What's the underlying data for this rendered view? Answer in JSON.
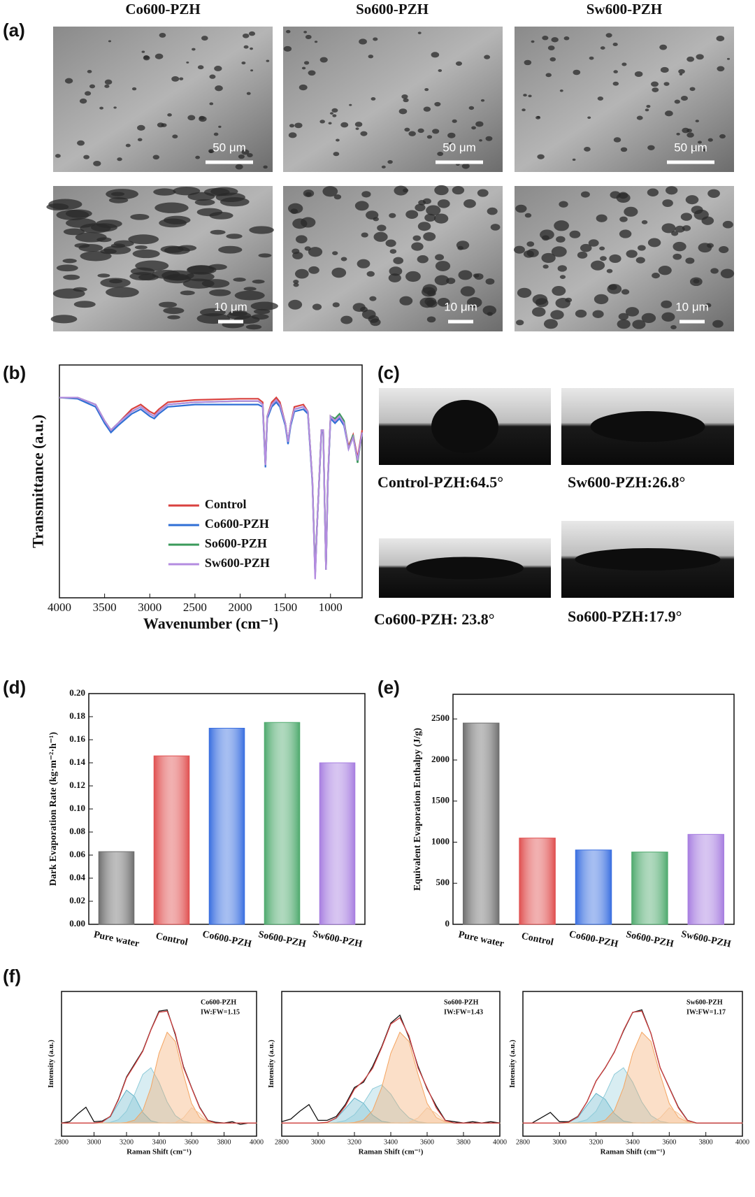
{
  "panel_labels": [
    "(a)",
    "(b)",
    "(c)",
    "(d)",
    "(e)",
    "(f)"
  ],
  "sem": {
    "columns": [
      "Co600-PZH",
      "So600-PZH",
      "Sw600-PZH"
    ],
    "scale_bars": [
      "50 μm",
      "10 μm"
    ]
  },
  "contact_angle": {
    "labels": [
      "Control-PZH:64.5°",
      "Sw600-PZH:26.8°",
      "Co600-PZH: 23.8°",
      "So600-PZH:17.9°"
    ]
  },
  "chart_data": [
    {
      "type": "line",
      "xlabel": "Wavenumber (cm⁻¹)",
      "ylabel": "Transmittance (a.u.)",
      "x": [
        4000,
        3800,
        3600,
        3500,
        3430,
        3350,
        3200,
        3100,
        3000,
        2950,
        2900,
        2800,
        2500,
        2000,
        1800,
        1750,
        1720,
        1700,
        1650,
        1600,
        1560,
        1500,
        1470,
        1440,
        1400,
        1300,
        1250,
        1200,
        1170,
        1150,
        1100,
        1080,
        1050,
        1030,
        1000,
        950,
        900,
        850,
        800,
        750,
        700,
        650
      ],
      "xlim": [
        4000,
        650
      ],
      "xticks": [
        4000,
        3500,
        3000,
        2500,
        2000,
        1500,
        1000
      ],
      "ylim": [
        0,
        100
      ],
      "legend": "lower center",
      "series": [
        {
          "name": "Control",
          "color": "#d9413f",
          "values": [
            86,
            86,
            83,
            76,
            72,
            75,
            81,
            83,
            80,
            79,
            81,
            84,
            85,
            85.5,
            85.5,
            84,
            57,
            78,
            84,
            86,
            84,
            75,
            67,
            75,
            82,
            83,
            80,
            50,
            10,
            30,
            72,
            72,
            12,
            50,
            78,
            76,
            78,
            75,
            65,
            70,
            60,
            72
          ]
        },
        {
          "name": "Co600-PZH",
          "color": "#2f6fd6",
          "values": [
            86,
            85.5,
            82,
            75,
            71,
            74,
            79,
            81,
            78,
            77,
            79,
            82,
            83,
            83,
            83,
            82,
            56,
            77,
            82,
            84,
            82,
            74,
            66,
            74,
            80,
            81,
            79,
            49,
            10,
            30,
            71,
            71,
            12,
            49,
            77,
            75,
            77,
            74,
            64,
            69,
            59,
            71
          ]
        },
        {
          "name": "So600-PZH",
          "color": "#3a9a5a",
          "values": [
            86,
            86,
            83,
            76,
            72,
            75,
            80,
            82,
            79,
            78,
            80,
            83,
            84,
            84.5,
            84.5,
            83,
            57,
            78,
            83,
            85,
            83,
            75,
            67,
            75,
            81,
            82,
            80,
            50,
            10,
            30,
            72,
            72,
            12,
            50,
            78,
            77,
            79,
            76,
            64,
            70,
            58,
            71
          ]
        },
        {
          "name": "Sw600-PZH",
          "color": "#b48ce0",
          "values": [
            86,
            86,
            83,
            76,
            72,
            75,
            80,
            82,
            79,
            78,
            80,
            83,
            84,
            84.5,
            84.5,
            83,
            57,
            78,
            83,
            85,
            83,
            75,
            67,
            75,
            81,
            82,
            80,
            50,
            8,
            30,
            72,
            72,
            12,
            50,
            78,
            76,
            78,
            75,
            64,
            69,
            59,
            71
          ]
        }
      ]
    },
    {
      "type": "bar",
      "ylabel": "Dark Evaporation Rate (kg·m⁻²·h⁻¹)",
      "categories": [
        "Pure water",
        "Control",
        "Co600-PZH",
        "So600-PZH",
        "Sw600-PZH"
      ],
      "values": [
        0.063,
        0.146,
        0.17,
        0.175,
        0.14
      ],
      "colors": [
        "#6e6e6e",
        "#e05050",
        "#3a6fe0",
        "#4faa6e",
        "#a77ee0"
      ],
      "ylim": [
        0,
        0.2
      ],
      "yticks": [
        {
          "value": 0,
          "label": "0.00"
        },
        {
          "value": 0.02,
          "label": "0.02"
        },
        {
          "value": 0.04,
          "label": "0.04"
        },
        {
          "value": 0.06,
          "label": "0.06"
        },
        {
          "value": 0.08,
          "label": "0.08"
        },
        {
          "value": 0.1,
          "label": "0.10"
        },
        {
          "value": 0.12,
          "label": "0.12"
        },
        {
          "value": 0.14,
          "label": "0.14"
        },
        {
          "value": 0.16,
          "label": "0.16"
        },
        {
          "value": 0.18,
          "label": "0.18"
        },
        {
          "value": 0.2,
          "label": "0.20"
        }
      ]
    },
    {
      "type": "bar",
      "ylabel": "Equivalent Evaporation Enthalpy (J/g)",
      "categories": [
        "Pure water",
        "Control",
        "Co600-PZH",
        "So600-PZH",
        "Sw600-PZH"
      ],
      "values": [
        2450,
        1050,
        905,
        880,
        1095
      ],
      "colors": [
        "#6e6e6e",
        "#e05050",
        "#3a6fe0",
        "#4faa6e",
        "#a77ee0"
      ],
      "ylim": [
        0,
        2800
      ],
      "yticks": [
        0,
        500,
        1000,
        1500,
        2000,
        2500
      ]
    },
    {
      "type": "line",
      "xlabel": "Raman Shift (cm⁻¹)",
      "ylabel": "Intensity (a.u.)",
      "annotations": [
        "Co600-PZH",
        "IW:FW=1.15"
      ],
      "x": [
        2800,
        2850,
        2900,
        2950,
        3000,
        3050,
        3100,
        3150,
        3200,
        3250,
        3300,
        3350,
        3400,
        3450,
        3500,
        3550,
        3600,
        3650,
        3700,
        3750,
        3800,
        3850,
        3900,
        3950,
        4000
      ],
      "xlim": [
        2800,
        4000
      ],
      "xticks": [
        2800,
        3000,
        3200,
        3400,
        3600,
        3800,
        4000
      ],
      "ylim": [
        -10,
        100
      ],
      "series": [
        {
          "color": "#5fb3c9",
          "fill": true,
          "values": [
            0,
            0,
            0,
            0,
            0,
            0.7,
            4.7,
            15,
            25,
            20,
            8,
            1.7,
            0.2,
            0,
            0,
            0,
            0,
            0,
            0,
            0,
            0,
            0,
            0,
            0,
            0
          ]
        },
        {
          "color": "#8fcbd9",
          "fill": true,
          "values": [
            0,
            0,
            0,
            0,
            0,
            0,
            0.5,
            2.5,
            9,
            22,
            37,
            42,
            31,
            16,
            5.7,
            1.3,
            0.1,
            0,
            0,
            0,
            0,
            0,
            0,
            0,
            0
          ]
        },
        {
          "color": "#f4a460",
          "fill": true,
          "values": [
            0,
            0,
            0,
            0,
            0,
            0,
            0,
            0,
            0.4,
            2.2,
            9.5,
            27,
            53,
            69,
            62,
            37,
            15,
            4.2,
            0.8,
            0,
            0,
            0,
            0,
            0,
            0
          ]
        },
        {
          "color": "#f5c59a",
          "fill": true,
          "values": [
            0,
            0,
            0,
            0,
            0,
            0,
            0,
            0,
            0,
            0,
            0,
            0,
            0,
            0,
            0.3,
            3.9,
            11.6,
            7.3,
            1,
            0,
            0,
            0,
            0,
            0,
            0
          ]
        },
        {
          "color": "#111111",
          "values": [
            0,
            1,
            7,
            12,
            1,
            1.5,
            5,
            18,
            35,
            45,
            55,
            71,
            85,
            86,
            67,
            43,
            27,
            12,
            2,
            0.5,
            0,
            1,
            -1,
            0,
            0
          ]
        },
        {
          "color": "#d04040",
          "values": [
            0,
            0,
            0,
            0,
            0,
            0.7,
            5.2,
            17.5,
            34.4,
            44.2,
            54.5,
            70.7,
            84.2,
            85,
            68,
            42.2,
            26.7,
            11.5,
            1.8,
            0,
            0,
            0,
            0,
            0,
            0
          ]
        }
      ]
    },
    {
      "type": "line",
      "xlabel": "Raman Shift (cm⁻¹)",
      "ylabel": "Intensity (a.u.)",
      "annotations": [
        "So600-PZH",
        "IW:FW=1.43"
      ],
      "x": [
        2800,
        2850,
        2900,
        2950,
        3000,
        3050,
        3100,
        3150,
        3200,
        3250,
        3300,
        3350,
        3400,
        3450,
        3500,
        3550,
        3600,
        3650,
        3700,
        3750,
        3800,
        3850,
        3900,
        3950,
        4000
      ],
      "xlim": [
        2800,
        4000
      ],
      "xticks": [
        2800,
        3000,
        3200,
        3400,
        3600,
        3800,
        4000
      ],
      "ylim": [
        -10,
        100
      ],
      "series": [
        {
          "color": "#5fb3c9",
          "fill": true,
          "values": [
            0,
            0,
            0,
            0,
            0,
            0.5,
            3.5,
            11,
            19,
            15,
            6,
            1.3,
            0.2,
            0,
            0,
            0,
            0,
            0,
            0,
            0,
            0,
            0,
            0,
            0,
            0
          ]
        },
        {
          "color": "#8fcbd9",
          "fill": true,
          "values": [
            0,
            0,
            0,
            0,
            0,
            0,
            0.4,
            1.8,
            6.3,
            15,
            26,
            29,
            22,
            11,
            4,
            0.9,
            0.1,
            0,
            0,
            0,
            0,
            0,
            0,
            0,
            0
          ]
        },
        {
          "color": "#f4a460",
          "fill": true,
          "values": [
            0,
            0,
            0,
            0,
            0,
            0,
            0,
            0,
            0.4,
            2.2,
            9.5,
            27,
            53,
            69,
            62,
            37,
            15,
            4.2,
            0.8,
            0,
            0,
            0,
            0,
            0,
            0
          ]
        },
        {
          "color": "#f5c59a",
          "fill": true,
          "values": [
            0,
            0,
            0,
            0,
            0,
            0,
            0,
            0,
            0,
            0,
            0,
            0,
            0,
            0,
            0.3,
            3.9,
            11.6,
            7.3,
            1,
            0,
            0,
            0,
            0,
            0,
            0
          ]
        },
        {
          "color": "#111111",
          "values": [
            1,
            3,
            9,
            14,
            2,
            2,
            5,
            14,
            27,
            31,
            43,
            58,
            76,
            82,
            65,
            43,
            26,
            13,
            2,
            1,
            0,
            1,
            0,
            1,
            0
          ]
        },
        {
          "color": "#d04040",
          "values": [
            0,
            0,
            0,
            0,
            0,
            0.5,
            3.9,
            12.8,
            25.7,
            32.2,
            41.5,
            57.3,
            75.2,
            80,
            66.3,
            41.8,
            26.7,
            11.5,
            1.8,
            0,
            0,
            0,
            0,
            0,
            0
          ]
        }
      ]
    },
    {
      "type": "line",
      "xlabel": "Raman Shift (cm⁻¹)",
      "ylabel": "Intensity (a.u.)",
      "annotations": [
        "Sw600-PZH",
        "IW:FW=1.17"
      ],
      "x": [
        2800,
        2850,
        2900,
        2950,
        3000,
        3050,
        3100,
        3150,
        3200,
        3250,
        3300,
        3350,
        3400,
        3450,
        3500,
        3550,
        3600,
        3650,
        3700,
        3750,
        3800,
        3850,
        3900,
        3950,
        4000
      ],
      "xlim": [
        2800,
        4000
      ],
      "xticks": [
        2800,
        3000,
        3200,
        3400,
        3600,
        3800,
        4000
      ],
      "ylim": [
        -10,
        100
      ],
      "series": [
        {
          "color": "#5fb3c9",
          "fill": true,
          "values": [
            0,
            0,
            0,
            0,
            0,
            0.6,
            4.2,
            13.5,
            22.5,
            18,
            7.2,
            1.5,
            0.2,
            0,
            0,
            0,
            0,
            0,
            0,
            0,
            0,
            0,
            0,
            0,
            0
          ]
        },
        {
          "color": "#8fcbd9",
          "fill": true,
          "values": [
            0,
            0,
            0,
            0,
            0,
            0,
            0.5,
            2.5,
            9,
            22,
            37,
            42,
            31,
            16,
            5.7,
            1.3,
            0.1,
            0,
            0,
            0,
            0,
            0,
            0,
            0,
            0
          ]
        },
        {
          "color": "#f4a460",
          "fill": true,
          "values": [
            0,
            0,
            0,
            0,
            0,
            0,
            0,
            0,
            0.4,
            2.2,
            9.5,
            27,
            53,
            69,
            62,
            37,
            15,
            4.2,
            0.8,
            0,
            0,
            0,
            0,
            0,
            0
          ]
        },
        {
          "color": "#f5c59a",
          "fill": true,
          "values": [
            0,
            0,
            0,
            0,
            0,
            0,
            0,
            0,
            0,
            0,
            0,
            0,
            0,
            0,
            0.3,
            3.9,
            11.6,
            7.3,
            1,
            0,
            0,
            0,
            0,
            0,
            0
          ]
        },
        {
          "color": "#111111",
          "values": [
            0,
            0,
            4,
            8,
            1,
            1,
            5,
            16,
            32,
            42,
            54,
            70,
            84,
            86,
            68,
            42,
            27,
            12,
            2,
            0,
            0,
            0,
            0,
            0,
            0
          ]
        },
        {
          "color": "#d04040",
          "values": [
            0,
            0,
            0,
            0,
            0,
            0.6,
            4.7,
            16,
            31.9,
            42.2,
            53.7,
            70.5,
            84.2,
            85,
            68,
            42.2,
            26.7,
            11.5,
            1.8,
            0,
            0,
            0,
            0,
            0,
            0
          ]
        }
      ]
    }
  ]
}
